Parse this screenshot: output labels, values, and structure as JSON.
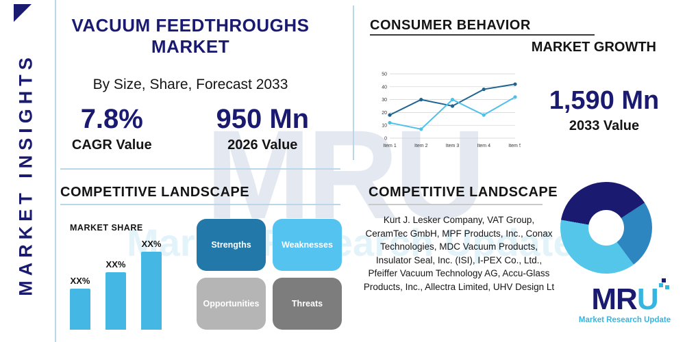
{
  "sidebar": {
    "label": "MARKET INSIGHTS"
  },
  "header": {
    "title": "VACUUM FEEDTHROUGHS MARKET",
    "subtitle": "By Size, Share, Forecast 2033"
  },
  "stats": {
    "cagr": {
      "value": "7.8%",
      "label": "CAGR Value"
    },
    "v2026": {
      "value": "950 Mn",
      "label": "2026 Value"
    },
    "v2033": {
      "value": "1,590 Mn",
      "label": "2033 Value"
    }
  },
  "consumer_behavior": {
    "heading": "CONSUMER BEHAVIOR",
    "subheading": "MARKET GROWTH"
  },
  "chart_data": [
    {
      "type": "line",
      "title": "MARKET GROWTH",
      "categories": [
        "Item 1",
        "Item 2",
        "Item 3",
        "Item 4",
        "Item 5"
      ],
      "series": [
        {
          "name": "series-dark",
          "color": "#1f6391",
          "values": [
            18,
            30,
            25,
            38,
            42
          ]
        },
        {
          "name": "series-light",
          "color": "#4fc0e8",
          "values": [
            12,
            7,
            30,
            18,
            32
          ]
        }
      ],
      "ylim": [
        0,
        50
      ],
      "yticks": [
        0,
        10,
        20,
        30,
        40,
        50
      ],
      "grid": true,
      "legend": "none"
    },
    {
      "type": "bar",
      "title": "MARKET SHARE",
      "categories": [
        "bar1",
        "bar2",
        "bar3"
      ],
      "values": [
        20,
        28,
        38
      ],
      "labels": [
        "XX%",
        "XX%",
        "XX%"
      ],
      "color": "#45b7e5"
    },
    {
      "type": "pie",
      "title": "competitor-share-donut",
      "segments": [
        {
          "name": "segment-navy",
          "color": "#1a1a70",
          "value": 38
        },
        {
          "name": "segment-blue",
          "color": "#2e86c1",
          "value": 24
        },
        {
          "name": "segment-cyan",
          "color": "#54c6ea",
          "value": 38
        }
      ]
    }
  ],
  "competitive_left": {
    "heading": "COMPETITIVE LANDSCAPE",
    "market_share_label": "MARKET SHARE",
    "swot": [
      {
        "label": "Strengths",
        "color": "#2278a8"
      },
      {
        "label": "Weaknesses",
        "color": "#55c3f0"
      },
      {
        "label": "Opportunities",
        "color": "#b5b5b5"
      },
      {
        "label": "Threats",
        "color": "#7d7d7d"
      }
    ]
  },
  "competitive_right": {
    "heading": "COMPETITIVE LANDSCAPE",
    "companies": "Kurt J. Lesker Company, VAT Group, CeramTec GmbH, MPF Products, Inc., Conax Technologies, MDC Vacuum Products, Insulator Seal, Inc. (ISI), I-PEX Co., Ltd., Pfeiffer Vacuum Technology AG, Accu-Glass Products, Inc., Allectra Limited, UHV Design Lt"
  },
  "logo": {
    "mark_primary": "MR",
    "mark_accent": "U",
    "tagline": "Market Research Update"
  },
  "watermark": {
    "text": "MRU",
    "tagline": "Market Research Update"
  }
}
